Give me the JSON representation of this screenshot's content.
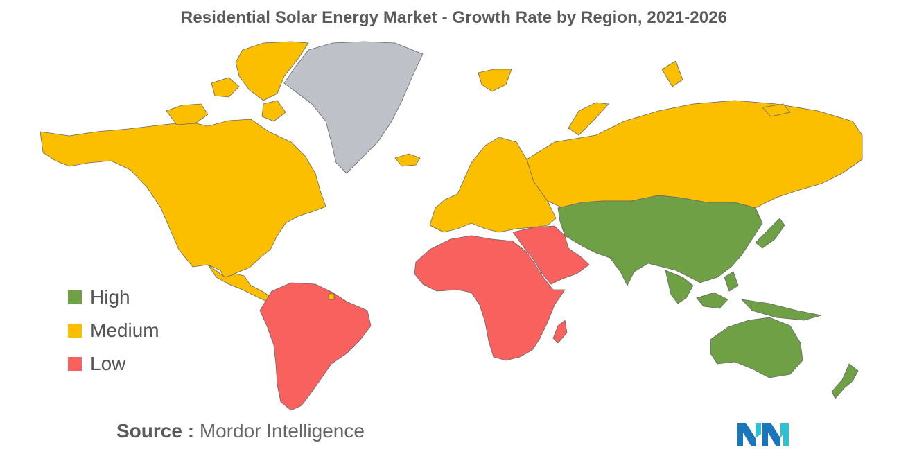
{
  "title": "Residential Solar Energy Market - Growth Rate by Region, 2021-2026",
  "legend": [
    {
      "key": "high",
      "label": "High",
      "color": "#70a046"
    },
    {
      "key": "medium",
      "label": "Medium",
      "color": "#fbbf00"
    },
    {
      "key": "low",
      "label": "Low",
      "color": "#f8615e"
    }
  ],
  "no_data_color": "#bec2c8",
  "regions": {
    "north_america": "medium",
    "europe": "medium",
    "russia_north_asia": "medium",
    "asia_pacific": "high",
    "oceania": "high",
    "south_america": "low",
    "africa": "low",
    "middle_east": "low",
    "greenland": "none"
  },
  "source": {
    "label": "Source :",
    "text": "Mordor Intelligence"
  },
  "logo": {
    "name": "mordor-intelligence-logo",
    "color_dark": "#1b75bc",
    "color_light": "#2fc1d3"
  }
}
